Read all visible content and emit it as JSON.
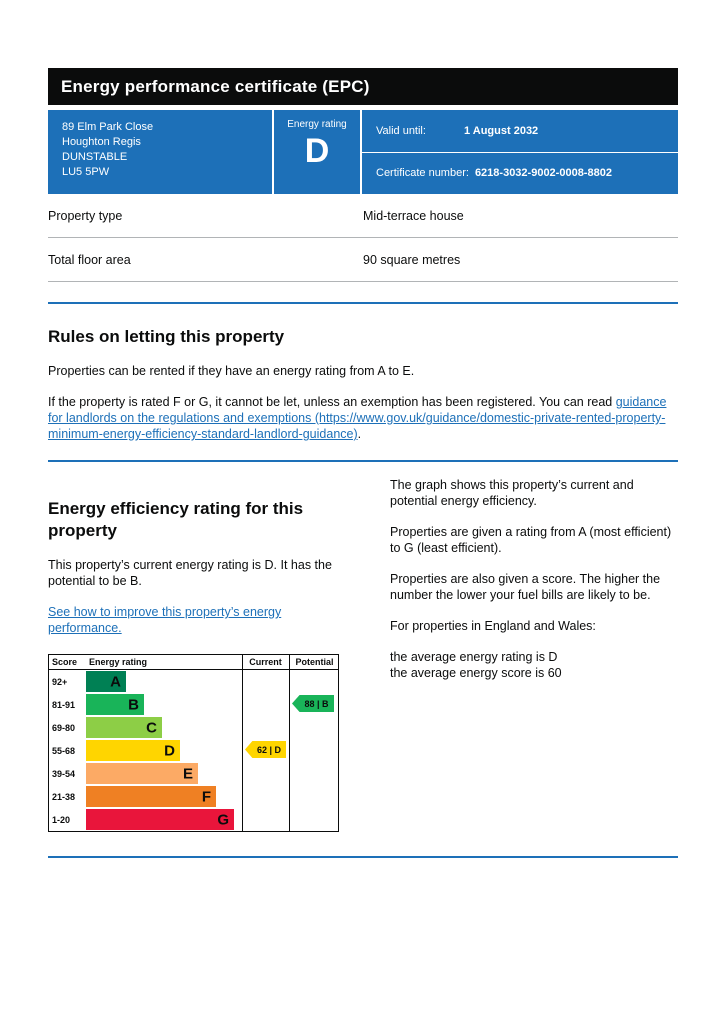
{
  "header": {
    "title": "Energy performance certificate (EPC)"
  },
  "summary": {
    "address_lines": [
      "89 Elm Park Close",
      "Houghton Regis",
      "DUNSTABLE",
      "LU5 5PW"
    ],
    "rating_label": "Energy rating",
    "rating_value": "D",
    "valid_until_label": "Valid until:",
    "valid_until_value": "1 August 2032",
    "certificate_label": "Certificate number:",
    "certificate_value": "6218-3032-9002-0008-8802"
  },
  "property": {
    "rows": [
      {
        "label": "Property type",
        "value": "Mid-terrace house"
      },
      {
        "label": "Total floor area",
        "value": "90 square metres"
      }
    ]
  },
  "letting": {
    "heading": "Rules on letting this property",
    "para1": "Properties can be rented if they have an energy rating from A to E.",
    "para2_text": "If the property is rated F or G, it cannot be let, unless an exemption has been registered. You can read ",
    "para2_link": "guidance for landlords on the regulations and exemptions (https://www.gov.uk/guidance/domestic-private-rented-property-minimum-energy-efficiency-standard-landlord-guidance)",
    "para2_end": "."
  },
  "efficiency": {
    "heading": "Energy efficiency rating for this property",
    "intro": "This property’s current energy rating is D. It has the potential to be B.",
    "improve_link": "See how to improve this property’s energy performance.",
    "right_paras": [
      "The graph shows this property’s current and potential energy efficiency.",
      "Properties are given a rating from A (most efficient) to G (least efficient).",
      "Properties are also given a score. The higher the number the lower your fuel bills are likely to be.",
      "For properties in England and Wales:"
    ],
    "average_rating_line": "the average energy rating is D",
    "average_score_line": "the average energy score is 60"
  },
  "chart_data": {
    "type": "bar",
    "title": "Energy efficiency rating",
    "columns": [
      "Score",
      "Energy rating",
      "Current",
      "Potential"
    ],
    "bands": [
      {
        "score": "92+",
        "rating": "A",
        "color": "#008054"
      },
      {
        "score": "81-91",
        "rating": "B",
        "color": "#19b459"
      },
      {
        "score": "69-80",
        "rating": "C",
        "color": "#8dce46"
      },
      {
        "score": "55-68",
        "rating": "D",
        "color": "#ffd500"
      },
      {
        "score": "39-54",
        "rating": "E",
        "color": "#fcaa65"
      },
      {
        "score": "21-38",
        "rating": "F",
        "color": "#ef8023"
      },
      {
        "score": "1-20",
        "rating": "G",
        "color": "#e9153b"
      }
    ],
    "current": {
      "score": 62,
      "rating": "D",
      "label": "62 | D",
      "band_index": 3
    },
    "potential": {
      "score": 88,
      "rating": "B",
      "label": "88 | B",
      "band_index": 1
    }
  },
  "colors": {
    "header_bg": "#0b0c0c",
    "panel_bg": "#1d70b8",
    "divider_blue": "#1d70b8",
    "link": "#1d70b8",
    "table_border": "#b1b4b6",
    "text": "#0b0c0c"
  }
}
